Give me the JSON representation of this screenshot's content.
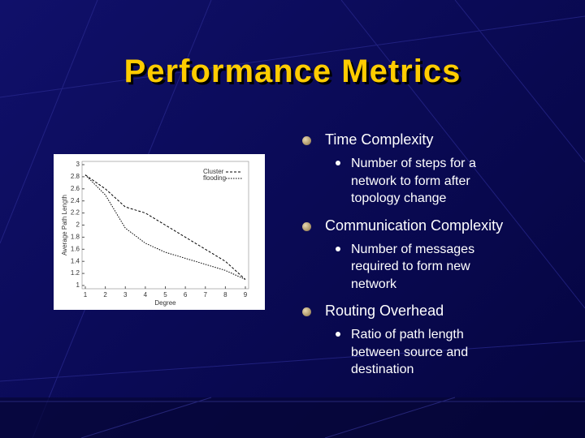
{
  "title": "Performance Metrics",
  "chart_data": {
    "type": "line",
    "x_label": "Degree",
    "y_label": "Average Path Length",
    "x": [
      1,
      2,
      3,
      4,
      5,
      6,
      7,
      8,
      9
    ],
    "series": [
      {
        "name": "Cluster",
        "color": "#000000",
        "values": [
          2.83,
          2.6,
          2.3,
          2.2,
          2.0,
          1.8,
          1.6,
          1.4,
          1.1
        ]
      },
      {
        "name": "flooding",
        "color": "#000000",
        "values": [
          2.83,
          2.5,
          1.95,
          1.7,
          1.55,
          1.45,
          1.35,
          1.25,
          1.1
        ]
      }
    ],
    "xlim": [
      1,
      9
    ],
    "xticks": [
      1,
      2,
      3,
      4,
      5,
      6,
      7,
      8,
      9
    ],
    "ylim": [
      1,
      3
    ],
    "yticks": [
      1,
      1.2,
      1.4,
      1.6,
      1.8,
      2,
      2.2,
      2.4,
      2.6,
      2.8,
      3
    ]
  },
  "bullets": [
    {
      "text": "Time Complexity",
      "sub": [
        [
          "Number of steps for a",
          "network to form after",
          "topology change"
        ]
      ]
    },
    {
      "text": "Communication Complexity",
      "sub": [
        [
          "Number of messages",
          "required to form new",
          "network"
        ]
      ]
    },
    {
      "text": "Routing Overhead",
      "sub": [
        [
          "Ratio of path length",
          "between source and",
          "destination"
        ]
      ]
    }
  ]
}
